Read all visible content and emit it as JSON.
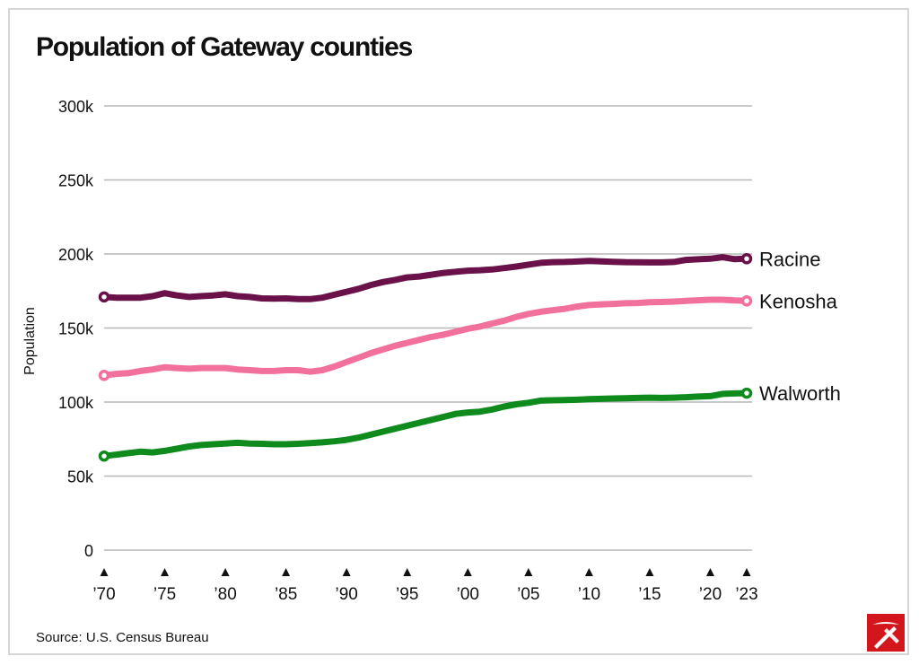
{
  "title": "Population of Gateway counties",
  "source": "Source: U.S. Census Bureau",
  "logo_icon": "pickaxe-logo-icon",
  "chart_data": {
    "type": "line",
    "title": "Population of Gateway counties",
    "xlabel": "",
    "ylabel": "Population",
    "ylim": [
      0,
      300000
    ],
    "xlim": [
      1970,
      2023
    ],
    "yticks": [
      0,
      50000,
      100000,
      150000,
      200000,
      250000,
      300000
    ],
    "ytick_labels": [
      "0",
      "50k",
      "100k",
      "150k",
      "200k",
      "250k",
      "300k"
    ],
    "xticks": [
      1970,
      1975,
      1980,
      1985,
      1990,
      1995,
      2000,
      2005,
      2010,
      2015,
      2020,
      2023
    ],
    "xtick_labels": [
      "’70",
      "’75",
      "’80",
      "’85",
      "’90",
      "’95",
      "’00",
      "’05",
      "’10",
      "’15",
      "’20",
      "’23"
    ],
    "grid": "horizontal",
    "legend": "direct labels at line ends",
    "x": [
      1970,
      1971,
      1972,
      1973,
      1974,
      1975,
      1976,
      1977,
      1978,
      1979,
      1980,
      1981,
      1982,
      1983,
      1984,
      1985,
      1986,
      1987,
      1988,
      1989,
      1990,
      1991,
      1992,
      1993,
      1994,
      1995,
      1996,
      1997,
      1998,
      1999,
      2000,
      2001,
      2002,
      2003,
      2004,
      2005,
      2006,
      2007,
      2008,
      2009,
      2010,
      2011,
      2012,
      2013,
      2014,
      2015,
      2016,
      2017,
      2018,
      2019,
      2020,
      2021,
      2022,
      2023
    ],
    "series": [
      {
        "name": "Racine",
        "color": "#6b1149",
        "values": [
          171000,
          170500,
          170500,
          170500,
          171500,
          173500,
          172000,
          171000,
          171500,
          172000,
          172800,
          171500,
          171000,
          170000,
          169800,
          170000,
          169500,
          169500,
          170500,
          172500,
          174500,
          176500,
          179000,
          181000,
          182500,
          184200,
          184800,
          186000,
          187200,
          188000,
          188700,
          189000,
          189500,
          190500,
          191500,
          192800,
          194000,
          194500,
          194600,
          194900,
          195300,
          195000,
          194700,
          194500,
          194400,
          194300,
          194300,
          194600,
          196000,
          196400,
          196800,
          197800,
          196500,
          196800
        ]
      },
      {
        "name": "Kenosha",
        "color": "#f2709c",
        "values": [
          118000,
          119000,
          119500,
          121000,
          122000,
          123500,
          123000,
          122500,
          123000,
          123000,
          123000,
          122000,
          121500,
          121000,
          121000,
          121500,
          121500,
          120500,
          121500,
          124000,
          127000,
          130000,
          133000,
          135500,
          138000,
          140000,
          142000,
          144000,
          145500,
          147500,
          149500,
          151000,
          153000,
          155000,
          157500,
          159500,
          161000,
          162000,
          163000,
          164500,
          165500,
          166000,
          166300,
          166700,
          166900,
          167400,
          167600,
          167900,
          168300,
          168700,
          169100,
          169100,
          168600,
          168300
        ]
      },
      {
        "name": "Walworth",
        "color": "#0f8a1c",
        "values": [
          63500,
          64500,
          65500,
          66500,
          66000,
          67000,
          68500,
          70000,
          71000,
          71500,
          72000,
          72500,
          72000,
          71800,
          71500,
          71500,
          71800,
          72300,
          72800,
          73500,
          74500,
          76000,
          78000,
          80000,
          82000,
          84000,
          86000,
          88000,
          90000,
          92000,
          93000,
          93500,
          95000,
          97000,
          98500,
          99500,
          101000,
          101200,
          101400,
          101600,
          102000,
          102200,
          102400,
          102600,
          102800,
          103000,
          102800,
          103000,
          103300,
          103700,
          104000,
          105500,
          105800,
          106000
        ]
      }
    ]
  }
}
